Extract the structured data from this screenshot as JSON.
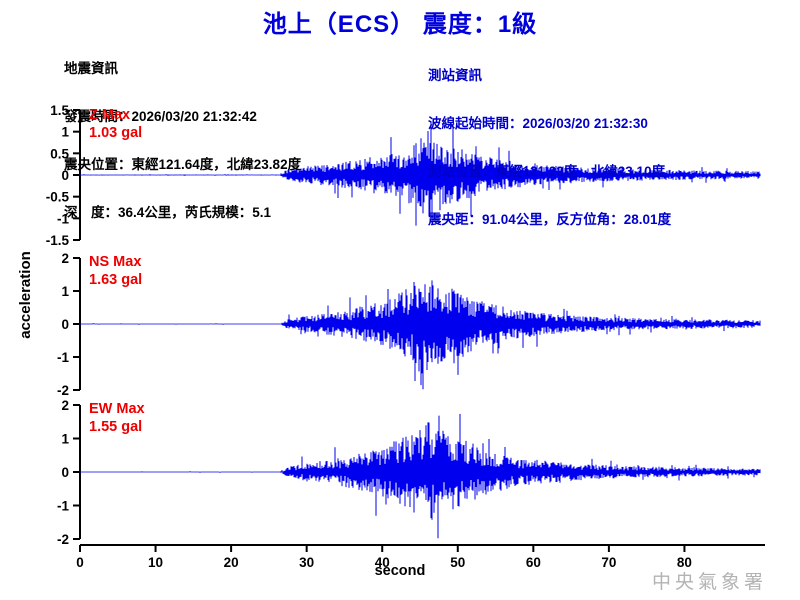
{
  "title": "池上（ECS） 震度：1級",
  "event_info": {
    "heading": "地震資訊",
    "lines": [
      "發震時間：2026/03/20 21:32:42",
      "震央位置：東經121.64度，北緯23.82度",
      "深　度：36.4公里，芮氏規模：5.1"
    ]
  },
  "station_info": {
    "heading": "測站資訊",
    "lines": [
      "波線起始時間：2026/03/20 21:32:30",
      "測站位置：東經121.22度，北緯23.10度",
      "震央距：91.04公里，反方位角：28.01度"
    ]
  },
  "watermark": "中央氣象署",
  "colors": {
    "title_blue": "#0000dd",
    "info_blue": "#0000cc",
    "wave_blue": "#0000ee",
    "label_red": "#ee0000",
    "axis_black": "#000000",
    "watermark_gray": "#b3b3b3"
  },
  "chart_data": {
    "type": "line",
    "subtype": "seismogram-3-component",
    "xlabel": "second",
    "ylabel": "acceleration",
    "x_range": [
      0,
      90
    ],
    "x_ticks": [
      0,
      10,
      20,
      30,
      40,
      50,
      60,
      70,
      80
    ],
    "signal_onset_s": 27.4,
    "peak_s": 46,
    "traces": [
      {
        "name": "Z",
        "label_line1": "Z Max",
        "label_line2": "1.03 gal",
        "max_gal": 1.03,
        "ylim": [
          -1.5,
          1.5
        ],
        "y_ticks": [
          1.5,
          1,
          0.5,
          0,
          -0.5,
          -1,
          -1.5
        ],
        "envelope": [
          [
            0,
            0.012
          ],
          [
            26.5,
            0.012
          ],
          [
            27.5,
            0.15
          ],
          [
            30,
            0.2
          ],
          [
            34,
            0.28
          ],
          [
            37,
            0.35
          ],
          [
            39,
            0.45
          ],
          [
            41,
            0.5
          ],
          [
            43,
            0.6
          ],
          [
            44.5,
            0.75
          ],
          [
            46,
            1.03
          ],
          [
            47,
            0.9
          ],
          [
            48.5,
            0.75
          ],
          [
            50,
            0.65
          ],
          [
            52,
            0.5
          ],
          [
            54,
            0.42
          ],
          [
            56,
            0.35
          ],
          [
            58,
            0.3
          ],
          [
            60,
            0.25
          ],
          [
            64,
            0.2
          ],
          [
            68,
            0.16
          ],
          [
            72,
            0.14
          ],
          [
            78,
            0.12
          ],
          [
            84,
            0.1
          ],
          [
            90,
            0.09
          ]
        ]
      },
      {
        "name": "NS",
        "label_line1": "NS Max",
        "label_line2": "1.63 gal",
        "max_gal": 1.63,
        "ylim": [
          -2,
          2
        ],
        "y_ticks": [
          2,
          1,
          0,
          -1,
          -2
        ],
        "envelope": [
          [
            0,
            0.012
          ],
          [
            26.5,
            0.012
          ],
          [
            27.5,
            0.15
          ],
          [
            30,
            0.25
          ],
          [
            33,
            0.33
          ],
          [
            36,
            0.45
          ],
          [
            38,
            0.55
          ],
          [
            40,
            0.7
          ],
          [
            42,
            0.9
          ],
          [
            43.5,
            1.1
          ],
          [
            45,
            1.63
          ],
          [
            46.5,
            1.4
          ],
          [
            48,
            1.2
          ],
          [
            50,
            1.0
          ],
          [
            52,
            0.8
          ],
          [
            54,
            0.65
          ],
          [
            56,
            0.55
          ],
          [
            58,
            0.45
          ],
          [
            60,
            0.38
          ],
          [
            63,
            0.3
          ],
          [
            66,
            0.25
          ],
          [
            70,
            0.2
          ],
          [
            75,
            0.17
          ],
          [
            80,
            0.15
          ],
          [
            85,
            0.13
          ],
          [
            90,
            0.12
          ]
        ]
      },
      {
        "name": "EW",
        "label_line1": "EW Max",
        "label_line2": "1.55 gal",
        "max_gal": 1.55,
        "ylim": [
          -2,
          2
        ],
        "y_ticks": [
          2,
          1,
          0,
          -1,
          -2
        ],
        "envelope": [
          [
            0,
            0.012
          ],
          [
            26.5,
            0.012
          ],
          [
            27.5,
            0.15
          ],
          [
            30,
            0.28
          ],
          [
            33,
            0.36
          ],
          [
            36,
            0.5
          ],
          [
            38,
            0.6
          ],
          [
            40,
            0.75
          ],
          [
            42,
            1.0
          ],
          [
            44,
            1.25
          ],
          [
            46,
            1.55
          ],
          [
            47.5,
            1.3
          ],
          [
            49,
            1.15
          ],
          [
            51,
            0.95
          ],
          [
            53,
            0.75
          ],
          [
            55,
            0.6
          ],
          [
            57,
            0.5
          ],
          [
            59,
            0.42
          ],
          [
            61,
            0.35
          ],
          [
            64,
            0.28
          ],
          [
            68,
            0.22
          ],
          [
            72,
            0.18
          ],
          [
            78,
            0.15
          ],
          [
            84,
            0.12
          ],
          [
            90,
            0.1
          ]
        ]
      }
    ]
  }
}
